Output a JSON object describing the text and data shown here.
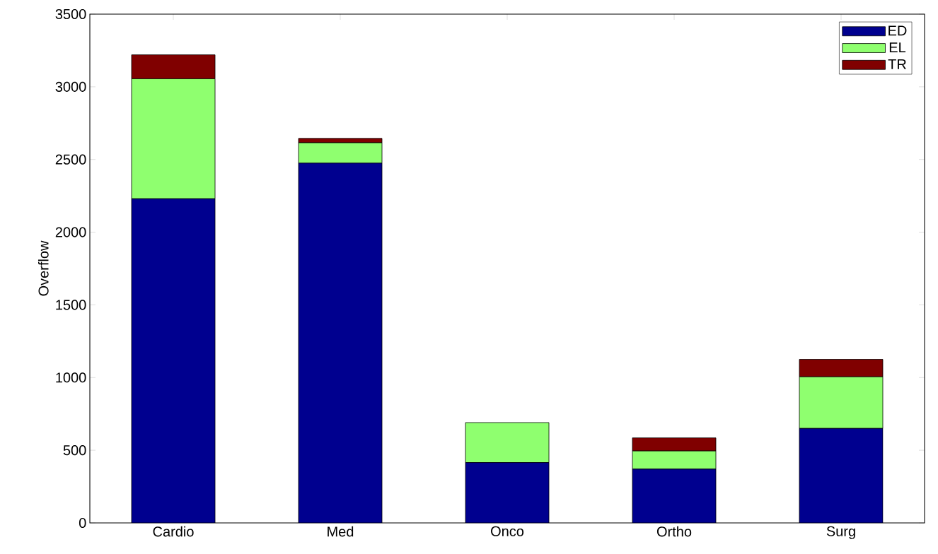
{
  "chart_data": {
    "type": "bar",
    "stacked": true,
    "ylabel": "Overflow",
    "categories": [
      "Cardio",
      "Med",
      "Onco",
      "Ortho",
      "Surg"
    ],
    "series": [
      {
        "name": "ED",
        "color": "#00008f",
        "values": [
          2230,
          2475,
          415,
          370,
          650
        ]
      },
      {
        "name": "EL",
        "color": "#8fff6f",
        "values": [
          825,
          140,
          275,
          125,
          355
        ]
      },
      {
        "name": "TR",
        "color": "#800000",
        "values": [
          165,
          30,
          0,
          90,
          120
        ]
      }
    ],
    "ylim": [
      0,
      3500
    ],
    "yticks": [
      0,
      500,
      1000,
      1500,
      2000,
      2500,
      3000,
      3500
    ],
    "grid": false,
    "legend": "top right"
  }
}
